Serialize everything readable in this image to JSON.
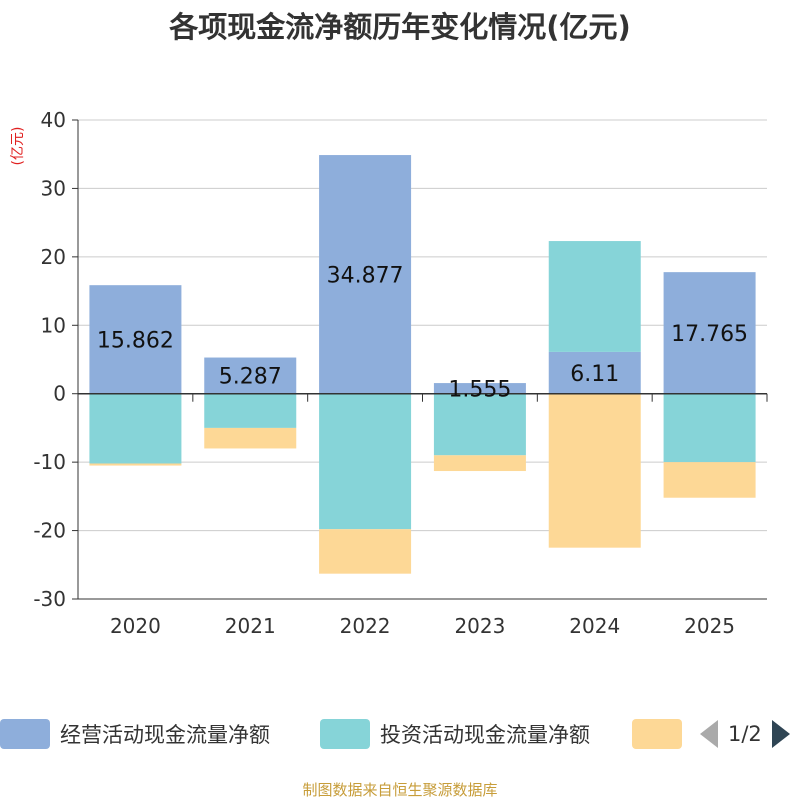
{
  "chart_data": {
    "type": "bar",
    "stacked": true,
    "title": "各项现金流净额历年变化情况(亿元)",
    "ylabel": "(亿元)",
    "xlabel": "",
    "ylim": [
      -30,
      40
    ],
    "yticks": [
      40,
      30,
      20,
      10,
      0,
      -10,
      -20,
      -30
    ],
    "grid": true,
    "categories": [
      "2020",
      "2021",
      "2022",
      "2023",
      "2024",
      "2025"
    ],
    "series": [
      {
        "name": "经营活动现金流量净额",
        "color": "#8eaedb",
        "values": [
          15.862,
          5.287,
          34.877,
          1.555,
          6.11,
          17.765
        ],
        "labels": [
          "15.862",
          "5.287",
          "34.877",
          "1.555",
          "6.11",
          "17.765"
        ]
      },
      {
        "name": "投资活动现金流量净额",
        "color": "#86d4d8",
        "values": [
          -10.2,
          -5.0,
          -19.8,
          -9.0,
          16.2,
          -10.0
        ]
      },
      {
        "name": "",
        "color": "#fdd896",
        "values": [
          -0.3,
          -3.0,
          -6.5,
          -2.3,
          -22.5,
          -5.2
        ]
      }
    ],
    "legend_position": "bottom"
  },
  "legend": {
    "page_text": "1/2"
  },
  "source_note": "制图数据来自恒生聚源数据库"
}
